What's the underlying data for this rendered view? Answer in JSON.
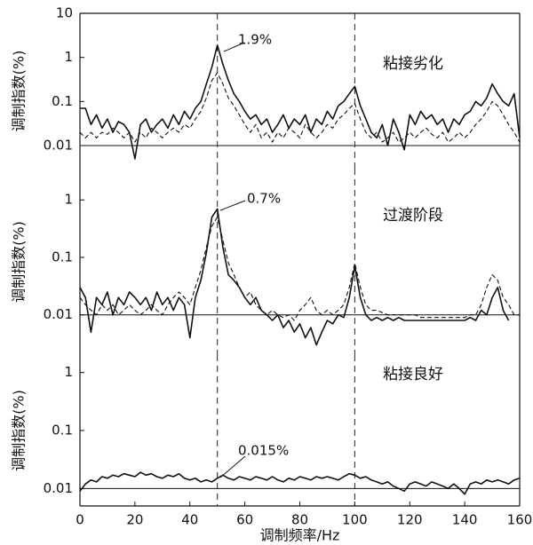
{
  "chart_data": [
    {
      "type": "line",
      "log_y": true,
      "baseline": 0.01,
      "vlines": [
        50,
        100
      ],
      "y_label": "调制指数(%)",
      "peak_annotation": "1.9%",
      "condition_label": "粘接劣化",
      "xlim": [
        0,
        160
      ],
      "ylim": [
        0.003,
        10
      ],
      "yticks": [
        0.01,
        0.1,
        1,
        10
      ],
      "x": [
        0,
        2,
        4,
        6,
        8,
        10,
        12,
        14,
        16,
        18,
        20,
        22,
        24,
        26,
        28,
        30,
        32,
        34,
        36,
        38,
        40,
        42,
        44,
        46,
        48,
        50,
        52,
        54,
        56,
        58,
        60,
        62,
        64,
        66,
        68,
        70,
        72,
        74,
        76,
        78,
        80,
        82,
        84,
        86,
        88,
        90,
        92,
        94,
        96,
        98,
        100,
        102,
        104,
        106,
        108,
        110,
        112,
        114,
        116,
        118,
        120,
        122,
        124,
        126,
        128,
        130,
        132,
        134,
        136,
        138,
        140,
        142,
        144,
        146,
        148,
        150,
        152,
        154,
        156,
        158,
        160
      ],
      "series": [
        {
          "color": "#111111",
          "style": "solid",
          "values": [
            0.07,
            0.07,
            0.03,
            0.05,
            0.025,
            0.04,
            0.02,
            0.035,
            0.03,
            0.02,
            0.005,
            0.03,
            0.04,
            0.02,
            0.03,
            0.04,
            0.025,
            0.05,
            0.03,
            0.06,
            0.04,
            0.07,
            0.1,
            0.25,
            0.6,
            1.9,
            0.7,
            0.3,
            0.15,
            0.1,
            0.06,
            0.04,
            0.05,
            0.03,
            0.04,
            0.02,
            0.03,
            0.05,
            0.025,
            0.04,
            0.03,
            0.05,
            0.02,
            0.04,
            0.03,
            0.06,
            0.04,
            0.08,
            0.1,
            0.15,
            0.22,
            0.08,
            0.04,
            0.02,
            0.015,
            0.03,
            0.01,
            0.04,
            0.02,
            0.008,
            0.05,
            0.03,
            0.06,
            0.04,
            0.05,
            0.03,
            0.04,
            0.02,
            0.04,
            0.03,
            0.05,
            0.06,
            0.1,
            0.08,
            0.12,
            0.25,
            0.15,
            0.1,
            0.08,
            0.15,
            0.015
          ]
        },
        {
          "color": "#111111",
          "style": "dashed",
          "values": [
            0.02,
            0.015,
            0.02,
            0.015,
            0.02,
            0.018,
            0.025,
            0.02,
            0.015,
            0.02,
            0.012,
            0.02,
            0.015,
            0.025,
            0.02,
            0.015,
            0.02,
            0.025,
            0.02,
            0.03,
            0.025,
            0.04,
            0.06,
            0.12,
            0.3,
            0.45,
            0.25,
            0.12,
            0.08,
            0.05,
            0.03,
            0.02,
            0.03,
            0.015,
            0.02,
            0.012,
            0.02,
            0.015,
            0.025,
            0.02,
            0.015,
            0.03,
            0.02,
            0.015,
            0.02,
            0.03,
            0.025,
            0.04,
            0.05,
            0.07,
            0.09,
            0.04,
            0.02,
            0.015,
            0.02,
            0.012,
            0.015,
            0.02,
            0.012,
            0.015,
            0.02,
            0.015,
            0.02,
            0.025,
            0.018,
            0.015,
            0.02,
            0.012,
            0.015,
            0.02,
            0.015,
            0.02,
            0.03,
            0.04,
            0.06,
            0.1,
            0.08,
            0.05,
            0.03,
            0.02,
            0.012
          ]
        }
      ]
    },
    {
      "type": "line",
      "log_y": true,
      "baseline": 0.01,
      "vlines": [
        50,
        100
      ],
      "y_label": "调制指数(%)",
      "peak_annotation": "0.7%",
      "condition_label": "过渡阶段",
      "xlim": [
        0,
        160
      ],
      "ylim": [
        0.002,
        3.5
      ],
      "yticks": [
        0.01,
        0.1,
        1
      ],
      "x": [
        0,
        2,
        4,
        6,
        8,
        10,
        12,
        14,
        16,
        18,
        20,
        22,
        24,
        26,
        28,
        30,
        32,
        34,
        36,
        38,
        40,
        42,
        44,
        46,
        48,
        50,
        52,
        54,
        56,
        58,
        60,
        62,
        64,
        66,
        68,
        70,
        72,
        74,
        76,
        78,
        80,
        82,
        84,
        86,
        88,
        90,
        92,
        94,
        96,
        98,
        100,
        102,
        104,
        106,
        108,
        110,
        112,
        114,
        116,
        118,
        120,
        122,
        124,
        126,
        128,
        130,
        132,
        134,
        136,
        138,
        140,
        142,
        144,
        146,
        148,
        150,
        152,
        154,
        156,
        158,
        160
      ],
      "series": [
        {
          "color": "#111111",
          "style": "solid",
          "values": [
            0.03,
            0.02,
            0.005,
            0.02,
            0.015,
            0.025,
            0.01,
            0.02,
            0.015,
            0.025,
            0.02,
            0.015,
            0.02,
            0.012,
            0.025,
            0.015,
            0.02,
            0.012,
            0.02,
            0.015,
            0.004,
            0.02,
            0.04,
            0.12,
            0.5,
            0.7,
            0.15,
            0.05,
            0.04,
            0.03,
            0.02,
            0.015,
            0.02,
            0.012,
            0.01,
            0.008,
            0.01,
            0.006,
            0.008,
            0.005,
            0.007,
            0.004,
            0.006,
            0.003,
            0.005,
            0.008,
            0.007,
            0.01,
            0.009,
            0.02,
            0.07,
            0.02,
            0.01,
            0.008,
            0.009,
            0.008,
            0.009,
            0.008,
            0.009,
            0.008,
            0.008,
            0.008,
            0.008,
            0.008,
            0.008,
            0.008,
            0.008,
            0.008,
            0.008,
            0.008,
            0.008,
            0.009,
            0.008,
            0.012,
            0.01,
            0.02,
            0.03,
            0.012,
            0.008,
            null,
            null
          ]
        },
        {
          "color": "#111111",
          "style": "dashed",
          "values": [
            0.02,
            0.015,
            0.012,
            0.01,
            0.015,
            0.012,
            0.015,
            0.01,
            0.012,
            0.015,
            0.012,
            0.01,
            0.012,
            0.015,
            0.012,
            0.01,
            0.015,
            0.02,
            0.025,
            0.02,
            0.015,
            0.03,
            0.06,
            0.15,
            0.35,
            0.5,
            0.2,
            0.08,
            0.05,
            0.03,
            0.02,
            0.025,
            0.015,
            0.012,
            0.01,
            0.012,
            0.01,
            0.009,
            0.01,
            0.008,
            0.012,
            0.015,
            0.02,
            0.012,
            0.01,
            0.012,
            0.01,
            0.012,
            0.015,
            0.03,
            0.08,
            0.03,
            0.015,
            0.012,
            0.012,
            0.011,
            0.01,
            0.01,
            0.01,
            0.01,
            0.01,
            0.01,
            0.009,
            0.009,
            0.009,
            0.009,
            0.009,
            0.009,
            0.009,
            0.009,
            0.009,
            0.01,
            0.01,
            0.015,
            0.03,
            0.05,
            0.04,
            0.02,
            0.015,
            0.01,
            0.01
          ]
        }
      ]
    },
    {
      "type": "line",
      "log_y": true,
      "baseline": 0.01,
      "vlines": [
        50,
        100
      ],
      "y_label": "调制指数(%)",
      "peak_annotation": "0.015%",
      "condition_label": "粘接良好",
      "x_label": "调制频率/Hz",
      "xlim": [
        0,
        160
      ],
      "xticks": [
        0,
        20,
        40,
        60,
        80,
        100,
        120,
        140,
        160
      ],
      "ylim": [
        0.005,
        2
      ],
      "yticks": [
        0.01,
        0.1,
        1
      ],
      "x": [
        0,
        2,
        4,
        6,
        8,
        10,
        12,
        14,
        16,
        18,
        20,
        22,
        24,
        26,
        28,
        30,
        32,
        34,
        36,
        38,
        40,
        42,
        44,
        46,
        48,
        50,
        52,
        54,
        56,
        58,
        60,
        62,
        64,
        66,
        68,
        70,
        72,
        74,
        76,
        78,
        80,
        82,
        84,
        86,
        88,
        90,
        92,
        94,
        96,
        98,
        100,
        102,
        104,
        106,
        108,
        110,
        112,
        114,
        116,
        118,
        120,
        122,
        124,
        126,
        128,
        130,
        132,
        134,
        136,
        138,
        140,
        142,
        144,
        146,
        148,
        150,
        152,
        154,
        156,
        158,
        160
      ],
      "series": [
        {
          "color": "#111111",
          "style": "solid",
          "values": [
            0.009,
            0.012,
            0.014,
            0.013,
            0.016,
            0.015,
            0.017,
            0.016,
            0.018,
            0.017,
            0.016,
            0.019,
            0.017,
            0.018,
            0.016,
            0.015,
            0.017,
            0.016,
            0.018,
            0.015,
            0.014,
            0.015,
            0.013,
            0.014,
            0.013,
            0.015,
            0.017,
            0.015,
            0.014,
            0.016,
            0.015,
            0.014,
            0.016,
            0.015,
            0.014,
            0.016,
            0.014,
            0.013,
            0.015,
            0.014,
            0.016,
            0.015,
            0.014,
            0.016,
            0.015,
            0.016,
            0.015,
            0.014,
            0.016,
            0.018,
            0.017,
            0.015,
            0.016,
            0.014,
            0.013,
            0.012,
            0.013,
            0.011,
            0.01,
            0.009,
            0.012,
            0.013,
            0.012,
            0.011,
            0.013,
            0.012,
            0.011,
            0.01,
            0.012,
            0.01,
            0.008,
            0.012,
            0.013,
            0.012,
            0.014,
            0.013,
            0.014,
            0.013,
            0.012,
            0.014,
            0.015
          ]
        }
      ]
    }
  ]
}
